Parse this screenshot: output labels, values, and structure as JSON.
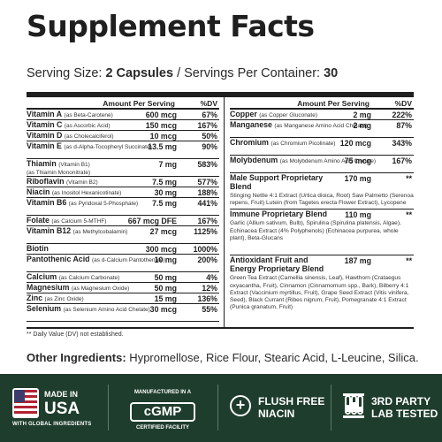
{
  "title": "Supplement Facts",
  "serving": {
    "size_label": "Serving Size: ",
    "size_value": "2 Capsules",
    "sep": " / ",
    "per_container_label": "Servings Per Container: ",
    "per_container_value": "30"
  },
  "table": {
    "header_amount": "Amount Per Serving",
    "header_dv": "%DV",
    "left_rows": [
      {
        "name": "Vitamin A",
        "source": "(as Beta-Carotene)",
        "amount": "600 mcg",
        "dv": "67%"
      },
      {
        "name": "Vitamin C",
        "source": "(as Ascorbic Acid)",
        "amount": "150 mcg",
        "dv": "167%"
      },
      {
        "name": "Vitamin D",
        "source": "(as Cholecalciferol)",
        "amount": "10 mcg",
        "dv": "50%"
      },
      {
        "name": "Vitamin E",
        "source": "(as d-Alpha-Tocopheryl Succinate)",
        "amount": "13.5 mg",
        "dv": "90%"
      },
      {
        "name": "Thiamin",
        "source": "(Vitamin B1)",
        "sub": "(as Thiamin Mononitrate)",
        "amount": "7 mg",
        "dv": "583%"
      },
      {
        "name": "Riboflavin",
        "source": "(Vitamin B2)",
        "amount": "7.5 mg",
        "dv": "577%"
      },
      {
        "name": "Niacin",
        "source": "(as Inositol Hexanicotinate)",
        "amount": "30 mg",
        "dv": "188%"
      },
      {
        "name": "Vitamin B6",
        "source": "(as Pyridoxal 5-Phosphate)",
        "amount": "7.5 mg",
        "dv": "441%"
      },
      {
        "name": "Folate",
        "source": "(as Calcium 5-MTHF)",
        "amount": "667 mcg DFE",
        "dv": "167%"
      },
      {
        "name": "Vitamin B12",
        "source": "(as Methylcobalamin)",
        "amount": "27 mcg",
        "dv": "1125%"
      },
      {
        "name": "Biotin",
        "source": "",
        "amount": "300 mcg",
        "dv": "1000%"
      },
      {
        "name": "Pantothenic Acid",
        "source": "(as d-Calcium Pantothenate)",
        "amount": "10 mg",
        "dv": "200%"
      },
      {
        "name": "Calcium",
        "source": "(as Calcium Carbonate)",
        "amount": "50 mg",
        "dv": "4%"
      },
      {
        "name": "Magnesium",
        "source": "(as Magnesium Oxide)",
        "amount": "50 mg",
        "dv": "12%"
      },
      {
        "name": "Zinc",
        "source": "(as Zinc Oxide)",
        "amount": "15 mg",
        "dv": "136%"
      },
      {
        "name": "Selenium",
        "source": "(as Selenium Amino Acid Chelate)",
        "amount": "30 mcg",
        "dv": "55%"
      }
    ],
    "right_rows": [
      {
        "name": "Copper",
        "source": "(as Copper Gluconate)",
        "amount": "2 mg",
        "dv": "222%"
      },
      {
        "name": "Manganese",
        "source": "(as Manganese Amino Acid Chelate)",
        "amount": "2 mg",
        "dv": "87%"
      },
      {
        "name": "Chromium",
        "source": "(as Chromium Picolinate)",
        "amount": "120 mcg",
        "dv": "343%"
      },
      {
        "name": "Molybdenum",
        "source": "(as Molybdenum Amino Acid Chelate)",
        "amount": "75 mcg",
        "dv": "167%"
      }
    ],
    "blends": [
      {
        "name": "Male Support Proprietary Blend",
        "amount": "170 mg",
        "dv": "**",
        "ingredients": "Stinging Nettle 4:1 Extract (Urtica dioica, Root) Saw Palmetto (Serenoa repens, Fruit) Lutein (from Tagetes erecta Flower Extract), Lycopene"
      },
      {
        "name": "Immune Proprietary Blend",
        "amount": "110 mg",
        "dv": "**",
        "ingredients": "Garlic (Allium sativum, Bulb), Spirulina (Spirulina platensis, Algae), Echinacea Extract (4% Polyphenols) (Echinacea purpurea, whole plant), Beta-Glucans"
      },
      {
        "name": "Antioxidant Fruit and Energy Proprietary Blend",
        "amount": "187 mg",
        "dv": "**",
        "ingredients": "Green Tea Extract (Camellia sinensis, Leaf), Hawthorn (Crataegus oxyacantha, Fruit), Cinnamon (Cinnamomum spp., Bark), Bilberry 4:1 Extract (Vaccinium myrtillus, Fruit), Grape Seed Extract (Vitis vinifera, Seed), Black Currant (Ribes nigrum, Fruit), Pomegranate 4:1 Extract (Punica granatum, Fruit)"
      }
    ]
  },
  "footnote": "** Daily Value (DV) not established.",
  "other_ingredients": {
    "label": "Other Ingredients:",
    "value": " Hypromellose, Rice Flour, Stearic Acid, L-Leucine, Silica."
  },
  "badges": {
    "usa": {
      "line1": "MADE IN",
      "line2": "USA",
      "small": "WITH GLOBAL INGREDIENTS"
    },
    "cgmp": {
      "top": "MANUFACTURED IN A",
      "main": "cGMP",
      "bottom": "CERTIFIED FACILITY"
    },
    "niacin": {
      "line1": "FLUSH FREE",
      "line2": "NIACIN"
    },
    "lab": {
      "line1": "3RD PARTY",
      "line2": "LAB TESTED"
    }
  },
  "colors": {
    "banner": "#1f3d2c",
    "text": "#1f1f1f"
  }
}
